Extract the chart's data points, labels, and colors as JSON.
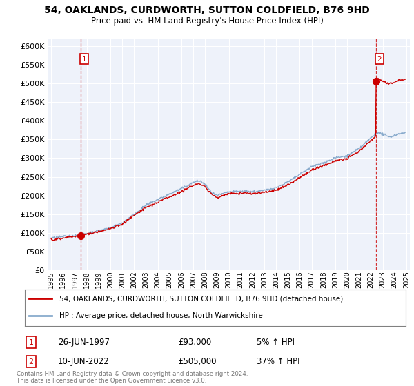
{
  "title1": "54, OAKLANDS, CURDWORTH, SUTTON COLDFIELD, B76 9HD",
  "title2": "Price paid vs. HM Land Registry's House Price Index (HPI)",
  "legend_line1": "54, OAKLANDS, CURDWORTH, SUTTON COLDFIELD, B76 9HD (detached house)",
  "legend_line2": "HPI: Average price, detached house, North Warwickshire",
  "sale1_date": "26-JUN-1997",
  "sale1_price": "£93,000",
  "sale1_hpi": "5% ↑ HPI",
  "sale2_date": "10-JUN-2022",
  "sale2_price": "£505,000",
  "sale2_hpi": "37% ↑ HPI",
  "footnote": "Contains HM Land Registry data © Crown copyright and database right 2024.\nThis data is licensed under the Open Government Licence v3.0.",
  "red_color": "#cc0000",
  "blue_color": "#88aacc",
  "background_color": "#eef2fa",
  "ylim": [
    0,
    620000
  ],
  "yticks": [
    0,
    50000,
    100000,
    150000,
    200000,
    250000,
    300000,
    350000,
    400000,
    450000,
    500000,
    550000,
    600000
  ],
  "sale1_year": 1997.49,
  "sale1_value": 93000,
  "sale2_year": 2022.44,
  "sale2_value": 505000
}
